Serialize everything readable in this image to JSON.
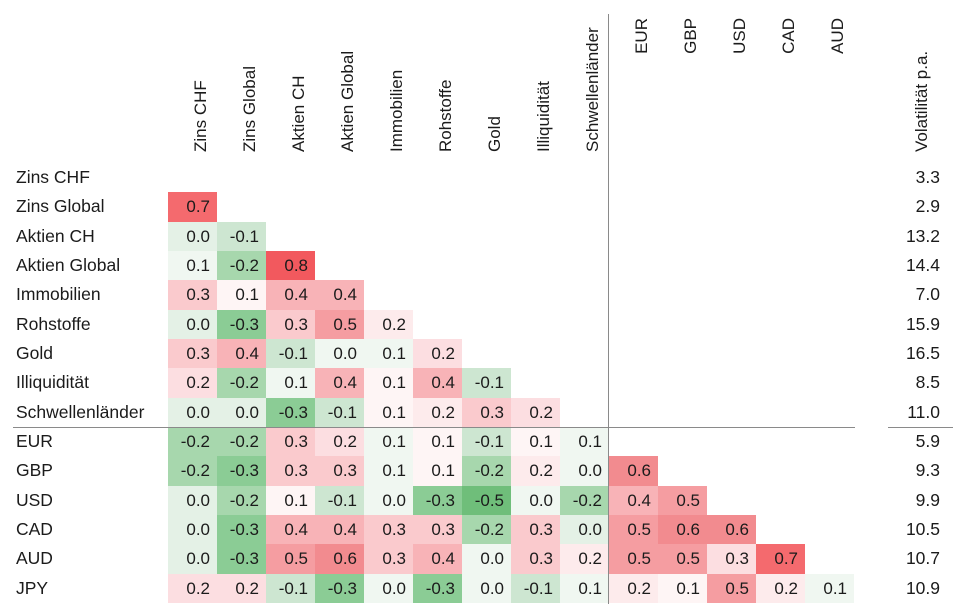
{
  "chart_data": {
    "type": "heatmap",
    "description": "Lower-triangular correlation matrix with annual volatility column",
    "rows": [
      "Zins CHF",
      "Zins Global",
      "Aktien CH",
      "Aktien Global",
      "Immobilien",
      "Rohstoffe",
      "Gold",
      "Illiquidität",
      "Schwellenländer",
      "EUR",
      "GBP",
      "USD",
      "CAD",
      "AUD",
      "JPY"
    ],
    "columns": [
      "Zins CHF",
      "Zins Global",
      "Aktien CH",
      "Aktien Global",
      "Immobilien",
      "Rohstoffe",
      "Gold",
      "Illiquidität",
      "Schwellenländer",
      "EUR",
      "GBP",
      "USD",
      "CAD",
      "AUD"
    ],
    "currency_group_start_column": "EUR",
    "value_range": [
      -0.5,
      0.8
    ],
    "cells": [
      [],
      [
        [
          "0.7",
          "r7"
        ]
      ],
      [
        [
          "0.0",
          "g0"
        ],
        [
          "-0.1",
          "g1"
        ]
      ],
      [
        [
          "0.1",
          "wg"
        ],
        [
          "-0.2",
          "g2"
        ],
        [
          "0.8",
          "r8"
        ]
      ],
      [
        [
          "0.3",
          "r3"
        ],
        [
          "0.1",
          "wp"
        ],
        [
          "0.4",
          "r4"
        ],
        [
          "0.4",
          "r4"
        ]
      ],
      [
        [
          "0.0",
          "g0"
        ],
        [
          "-0.3",
          "g3"
        ],
        [
          "0.3",
          "r3"
        ],
        [
          "0.5",
          "r5"
        ],
        [
          "0.2",
          "r1"
        ]
      ],
      [
        [
          "0.3",
          "r3"
        ],
        [
          "0.4",
          "r4"
        ],
        [
          "-0.1",
          "g1"
        ],
        [
          "0.0",
          "wg"
        ],
        [
          "0.1",
          "wg"
        ],
        [
          "0.2",
          "r2"
        ]
      ],
      [
        [
          "0.2",
          "r2"
        ],
        [
          "-0.2",
          "g2"
        ],
        [
          "0.1",
          "wg"
        ],
        [
          "0.4",
          "r4"
        ],
        [
          "0.1",
          "wp"
        ],
        [
          "0.4",
          "r4"
        ],
        [
          "-0.1",
          "g1"
        ]
      ],
      [
        [
          "0.0",
          "g0"
        ],
        [
          "0.0",
          "g0"
        ],
        [
          "-0.3",
          "g3"
        ],
        [
          "-0.1",
          "g1"
        ],
        [
          "0.1",
          "wp"
        ],
        [
          "0.2",
          "r1"
        ],
        [
          "0.3",
          "r3"
        ],
        [
          "0.2",
          "r2"
        ]
      ],
      [
        [
          "-0.2",
          "g2"
        ],
        [
          "-0.2",
          "g2"
        ],
        [
          "0.3",
          "r3"
        ],
        [
          "0.2",
          "r2"
        ],
        [
          "0.1",
          "wg"
        ],
        [
          "0.1",
          "wp"
        ],
        [
          "-0.1",
          "g1"
        ],
        [
          "0.1",
          "wp"
        ],
        [
          "0.1",
          "wg"
        ]
      ],
      [
        [
          "-0.2",
          "g2"
        ],
        [
          "-0.3",
          "g3"
        ],
        [
          "0.3",
          "r3"
        ],
        [
          "0.3",
          "r3"
        ],
        [
          "0.1",
          "wg"
        ],
        [
          "0.1",
          "wp"
        ],
        [
          "-0.2",
          "g2"
        ],
        [
          "0.2",
          "r1"
        ],
        [
          "0.0",
          "wg"
        ],
        [
          "0.6",
          "r6"
        ]
      ],
      [
        [
          "0.0",
          "g0"
        ],
        [
          "-0.2",
          "g2"
        ],
        [
          "0.1",
          "wp"
        ],
        [
          "-0.1",
          "g1"
        ],
        [
          "0.0",
          "wg"
        ],
        [
          "-0.3",
          "g3"
        ],
        [
          "-0.5",
          "g5"
        ],
        [
          "0.0",
          "wg"
        ],
        [
          "-0.2",
          "g2"
        ],
        [
          "0.4",
          "r4"
        ],
        [
          "0.5",
          "r5"
        ]
      ],
      [
        [
          "0.0",
          "g0"
        ],
        [
          "-0.3",
          "g3"
        ],
        [
          "0.4",
          "r4"
        ],
        [
          "0.4",
          "r4"
        ],
        [
          "0.3",
          "r3"
        ],
        [
          "0.3",
          "r3"
        ],
        [
          "-0.2",
          "g2"
        ],
        [
          "0.3",
          "r3"
        ],
        [
          "0.0",
          "g0"
        ],
        [
          "0.5",
          "r5"
        ],
        [
          "0.6",
          "r6"
        ],
        [
          "0.6",
          "r6"
        ]
      ],
      [
        [
          "0.0",
          "g0"
        ],
        [
          "-0.3",
          "g3"
        ],
        [
          "0.5",
          "r5"
        ],
        [
          "0.6",
          "r6"
        ],
        [
          "0.3",
          "r3"
        ],
        [
          "0.4",
          "r4"
        ],
        [
          "0.0",
          "wg"
        ],
        [
          "0.3",
          "r3"
        ],
        [
          "0.2",
          "r1"
        ],
        [
          "0.5",
          "r5"
        ],
        [
          "0.5",
          "r5"
        ],
        [
          "0.3",
          "r2"
        ],
        [
          "0.7",
          "r7"
        ]
      ],
      [
        [
          "0.2",
          "r2"
        ],
        [
          "0.2",
          "r2"
        ],
        [
          "-0.1",
          "g1"
        ],
        [
          "-0.3",
          "g3"
        ],
        [
          "0.0",
          "wg"
        ],
        [
          "-0.3",
          "g3"
        ],
        [
          "0.0",
          "wg"
        ],
        [
          "-0.1",
          "g1"
        ],
        [
          "0.1",
          "wg"
        ],
        [
          "0.2",
          "r1"
        ],
        [
          "0.1",
          "wp"
        ],
        [
          "0.5",
          "r5"
        ],
        [
          "0.2",
          "r1"
        ],
        [
          "0.1",
          "wg"
        ]
      ]
    ],
    "volatility_label": "Volatilität p.a.",
    "volatility": [
      "3.3",
      "2.9",
      "13.2",
      "14.4",
      "7.0",
      "15.9",
      "16.5",
      "8.5",
      "11.0",
      "5.9",
      "9.3",
      "9.9",
      "10.5",
      "10.7",
      "10.9"
    ],
    "colors": {
      "r8": "#f2595e",
      "r7": "#f46a6e",
      "r6": "#f28b8f",
      "r5": "#f59da1",
      "r4": "#f8b3b7",
      "r3": "#facacd",
      "r2": "#fcdee1",
      "r1": "#fdebec",
      "wp": "#fef5f5",
      "wg": "#f0f7f1",
      "g0": "#e4f1e6",
      "g1": "#cde6d1",
      "g2": "#a7d7ad",
      "g3": "#8bcc95",
      "g5": "#6fbe7a",
      "positive_end": "#f2595e",
      "negative_end": "#6fbe7a",
      "neutral": "#ffffff",
      "divider_line": "#8a8a8a",
      "text": "#1b1b1b"
    },
    "legend_position": "none",
    "grid": false
  }
}
